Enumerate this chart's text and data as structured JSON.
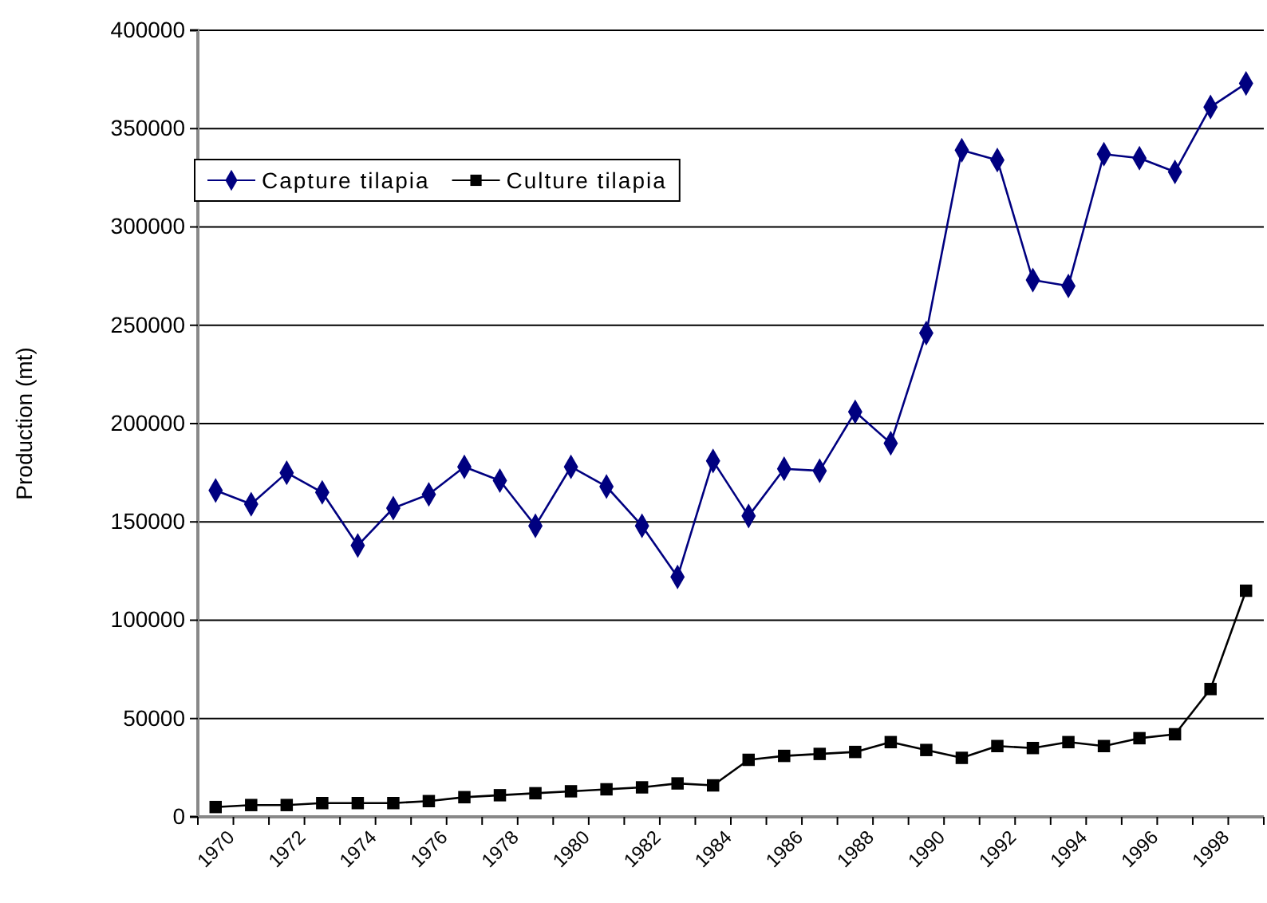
{
  "chart_data": {
    "type": "line",
    "ylabel": "Production (mt)",
    "categories": [
      "1970",
      null,
      "1972",
      null,
      "1974",
      null,
      "1976",
      null,
      "1978",
      null,
      "1980",
      null,
      "1982",
      null,
      "1984",
      null,
      "1986",
      null,
      "1988",
      null,
      "1990",
      null,
      "1992",
      null,
      "1994",
      null,
      "1996",
      null,
      "1998",
      null
    ],
    "series": [
      {
        "name": "Capture tilapia",
        "color": "#000080",
        "marker": "diamond",
        "values": [
          166000,
          159000,
          175000,
          165000,
          138000,
          157000,
          164000,
          178000,
          171000,
          148000,
          178000,
          168000,
          148000,
          122000,
          181000,
          153000,
          177000,
          176000,
          206000,
          190000,
          246000,
          339000,
          334000,
          273000,
          270000,
          337000,
          335000,
          328000,
          361000,
          373000
        ]
      },
      {
        "name": "Culture tilapia",
        "color": "#000000",
        "marker": "square",
        "values": [
          5000,
          6000,
          6000,
          7000,
          7000,
          7000,
          8000,
          10000,
          11000,
          12000,
          13000,
          14000,
          15000,
          17000,
          16000,
          29000,
          31000,
          32000,
          33000,
          38000,
          34000,
          30000,
          36000,
          35000,
          38000,
          36000,
          40000,
          42000,
          65000,
          115000
        ]
      }
    ],
    "ylim": [
      0,
      400000
    ],
    "yticks": [
      0,
      50000,
      100000,
      150000,
      200000,
      250000,
      300000,
      350000,
      400000
    ],
    "grid": "y",
    "legend": "top left",
    "line_style": "solid"
  }
}
